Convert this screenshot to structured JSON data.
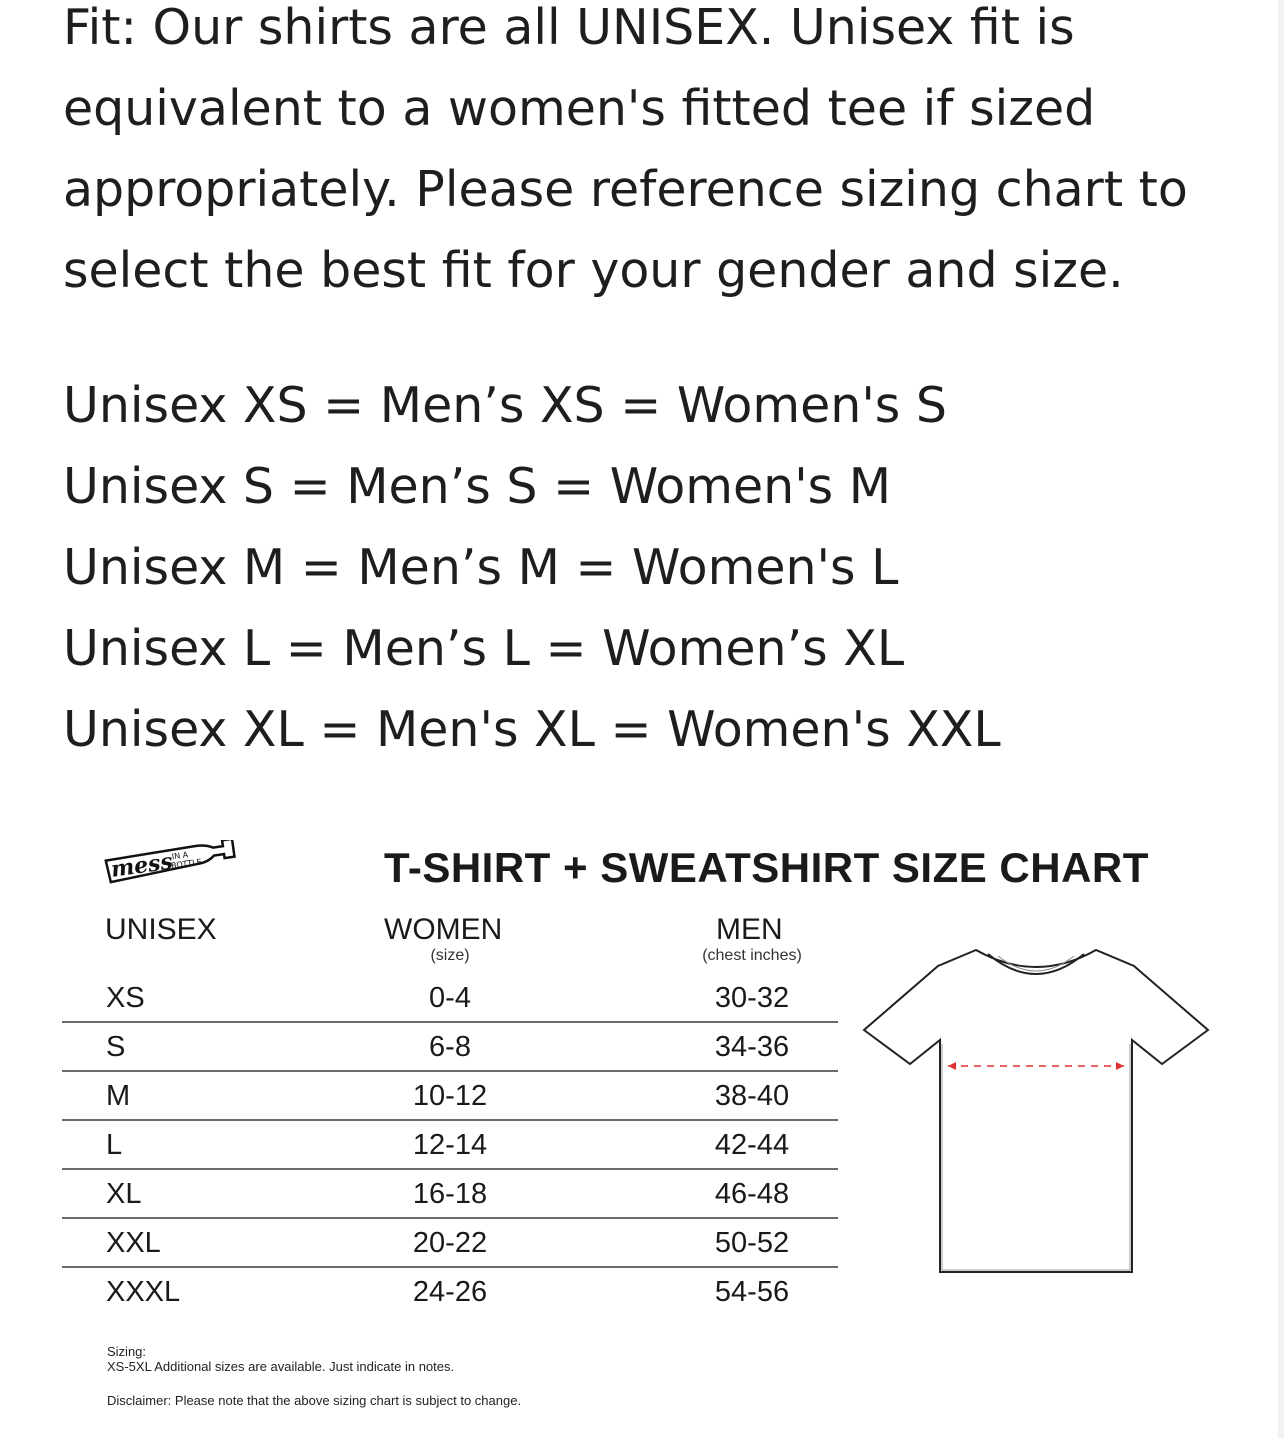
{
  "intro": "Fit: Our shirts are all UNISEX. Unisex fit is equivalent to a women's fitted tee if sized appropriately. Please reference sizing chart to select the best fit for your gender and size.",
  "equivalences": [
    "Unisex XS = Men’s XS = Women's S",
    "Unisex S = Men’s S = Women's M",
    "Unisex M = Men’s M = Women's L",
    "Unisex L = Men’s L = Women’s XL",
    "Unisex XL = Men's XL = Women's XXL"
  ],
  "chart": {
    "logo_text": "mess in a bottle",
    "title": "T-SHIRT + SWEATSHIRT SIZE CHART",
    "headers": {
      "unisex": "UNISEX",
      "women": "WOMEN",
      "women_sub": "(size)",
      "men": "MEN",
      "men_sub": "(chest inches)"
    },
    "rows": [
      {
        "unisex": "XS",
        "women": "0-4",
        "men": "30-32"
      },
      {
        "unisex": "S",
        "women": "6-8",
        "men": "34-36"
      },
      {
        "unisex": "M",
        "women": "10-12",
        "men": "38-40"
      },
      {
        "unisex": "L",
        "women": "12-14",
        "men": "42-44"
      },
      {
        "unisex": "XL",
        "women": "16-18",
        "men": "46-48"
      },
      {
        "unisex": "XXL",
        "women": "20-22",
        "men": "50-52"
      },
      {
        "unisex": "XXXL",
        "women": "24-26",
        "men": "54-56"
      }
    ],
    "notes": {
      "sizing_label": "Sizing:",
      "sizing_text": "XS-5XL Additional sizes are available. Just indicate in notes.",
      "disclaimer": "Disclaimer: Please note that the above sizing chart is subject to change."
    },
    "measure_color": "#e03030"
  }
}
